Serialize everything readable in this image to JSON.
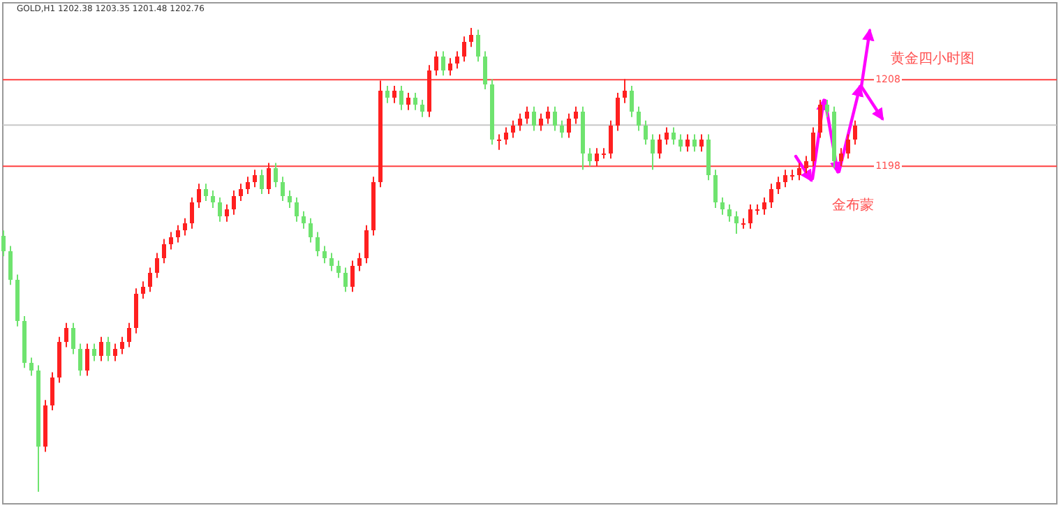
{
  "chart_data": {
    "type": "candlestick",
    "ylim": [
      1159.0,
      1216.9
    ],
    "yticks": [
      1198,
      1208
    ],
    "tick_labels": "y",
    "grid": false,
    "colors": [
      "#6fe36f",
      "#6fe36f",
      "#6fe36f",
      "#6fe36f",
      "#6fe36f",
      "#6fe36f",
      "#ff2020",
      "#ff2020",
      "#ff2020",
      "#ff2020",
      "#6fe36f",
      "#6fe36f",
      "#ff2020",
      "#6fe36f",
      "#ff2020",
      "#6fe36f",
      "#ff2020",
      "#ff2020",
      "#ff2020",
      "#ff2020",
      "#ff2020",
      "#ff2020",
      "#ff2020",
      "#ff2020",
      "#ff2020",
      "#ff2020",
      "#ff2020",
      "#ff2020",
      "#ff2020",
      "#6fe36f",
      "#6fe36f",
      "#6fe36f",
      "#ff2020",
      "#ff2020",
      "#ff2020",
      "#ff2020",
      "#ff2020",
      "#6fe36f",
      "#ff2020",
      "#6fe36f",
      "#6fe36f",
      "#6fe36f",
      "#6fe36f",
      "#6fe36f",
      "#6fe36f",
      "#6fe36f",
      "#6fe36f",
      "#6fe36f",
      "#6fe36f",
      "#6fe36f",
      "#ff2020",
      "#ff2020",
      "#ff2020",
      "#ff2020",
      "#ff2020",
      "#6fe36f",
      "#ff2020",
      "#6fe36f",
      "#ff2020",
      "#6fe36f",
      "#6fe36f",
      "#ff2020",
      "#ff2020",
      "#6fe36f",
      "#ff2020",
      "#ff2020",
      "#ff2020",
      "#ff2020",
      "#6fe36f",
      "#6fe36f",
      "#6fe36f",
      "#ff2020",
      "#ff2020",
      "#ff2020",
      "#ff2020",
      "#ff2020",
      "#6fe36f",
      "#ff2020",
      "#ff2020",
      "#6fe36f",
      "#6fe36f",
      "#ff2020",
      "#ff2020",
      "#6fe36f",
      "#6fe36f",
      "#ff2020",
      "#ff2020",
      "#ff2020",
      "#ff2020",
      "#ff2020",
      "#6fe36f",
      "#6fe36f",
      "#6fe36f",
      "#6fe36f",
      "#ff2020",
      "#ff2020",
      "#6fe36f",
      "#6fe36f",
      "#ff2020",
      "#6fe36f",
      "#ff2020",
      "#6fe36f",
      "#6fe36f",
      "#6fe36f",
      "#6fe36f",
      "#6fe36f",
      "#ff2020",
      "#ff2020",
      "#ff2020",
      "#ff2020",
      "#ff2020",
      "#ff2020",
      "#ff2020",
      "#ff2020",
      "#ff2020",
      "#ff2020",
      "#ff2020",
      "#ff2020",
      "#6fe36f",
      "#6fe36f",
      "#ff2020",
      "#ff2020",
      "#ff2020"
    ],
    "annotations": [
      "GOLD,H1 1202.38 1203.35 1201.48 1202.76",
      "黄金四小时图",
      "金布蒙"
    ],
    "ref_lines": [
      {
        "axis": "y",
        "value": 1208,
        "color": "#ff4040"
      },
      {
        "axis": "y",
        "value": 1198,
        "color": "#ff4040"
      },
      {
        "axis": "y",
        "value": 1202.76,
        "color": "#c8c8c8"
      }
    ],
    "categories": [
      null,
      null,
      null,
      null,
      null,
      null,
      null,
      null,
      null,
      null,
      null,
      null,
      null,
      null,
      null,
      null,
      null,
      null,
      null,
      null,
      null,
      null,
      null,
      null,
      null,
      null,
      null,
      null,
      null,
      null,
      null,
      null,
      null,
      null,
      null,
      null,
      null,
      null,
      null,
      null,
      null,
      null,
      null,
      null,
      null,
      null,
      null,
      null,
      null,
      null,
      null,
      null,
      null,
      null,
      null,
      null,
      null,
      null,
      null,
      null,
      null,
      null,
      null,
      null,
      null,
      null,
      null,
      null,
      null,
      null,
      null,
      null,
      null,
      null,
      null,
      null,
      null,
      null,
      null,
      null,
      null,
      null,
      null,
      null,
      null,
      null,
      null,
      null,
      null,
      null,
      null,
      null,
      null,
      null,
      null,
      null,
      null,
      null,
      null,
      null,
      null,
      null,
      null,
      null,
      null,
      null,
      null,
      null,
      null,
      null,
      null,
      null,
      null,
      null,
      null,
      null,
      null,
      null,
      null,
      null,
      null,
      null,
      null
    ],
    "ohlc": [
      [
        1190.0,
        1190.6,
        1187.6,
        1188.2
      ],
      [
        1188.2,
        1188.8,
        1184.3,
        1184.9
      ],
      [
        1184.9,
        1185.5,
        1179.5,
        1180.1
      ],
      [
        1180.1,
        1180.7,
        1174.7,
        1175.3
      ],
      [
        1175.3,
        1175.9,
        1173.8,
        1174.4
      ],
      [
        1174.4,
        1175.0,
        1160.4,
        1165.6
      ],
      [
        1165.6,
        1171.0,
        1165.0,
        1170.4
      ],
      [
        1170.4,
        1174.2,
        1169.8,
        1173.6
      ],
      [
        1173.6,
        1178.3,
        1173.0,
        1177.7
      ],
      [
        1177.7,
        1179.9,
        1177.1,
        1179.3
      ],
      [
        1179.3,
        1179.9,
        1176.3,
        1176.9
      ],
      [
        1176.9,
        1177.5,
        1173.8,
        1174.4
      ],
      [
        1174.4,
        1177.5,
        1173.8,
        1176.9
      ],
      [
        1176.9,
        1177.5,
        1175.5,
        1176.1
      ],
      [
        1176.1,
        1178.3,
        1175.5,
        1177.7
      ],
      [
        1177.7,
        1178.3,
        1175.5,
        1176.1
      ],
      [
        1176.1,
        1177.5,
        1175.5,
        1176.9
      ],
      [
        1176.9,
        1178.3,
        1176.3,
        1177.7
      ],
      [
        1177.7,
        1179.9,
        1177.1,
        1179.3
      ],
      [
        1179.3,
        1183.9,
        1178.7,
        1183.3
      ],
      [
        1183.3,
        1184.7,
        1182.7,
        1184.1
      ],
      [
        1184.1,
        1186.3,
        1183.5,
        1185.7
      ],
      [
        1185.7,
        1188.0,
        1185.1,
        1187.4
      ],
      [
        1187.4,
        1189.6,
        1186.8,
        1189.0
      ],
      [
        1189.0,
        1190.4,
        1188.4,
        1189.8
      ],
      [
        1189.8,
        1191.2,
        1189.2,
        1190.6
      ],
      [
        1190.6,
        1192.0,
        1190.0,
        1191.4
      ],
      [
        1191.4,
        1194.4,
        1190.8,
        1193.8
      ],
      [
        1193.8,
        1196.0,
        1193.2,
        1195.4
      ],
      [
        1195.4,
        1196.0,
        1194.0,
        1194.6
      ],
      [
        1194.6,
        1195.2,
        1193.2,
        1193.8
      ],
      [
        1193.8,
        1194.4,
        1191.6,
        1192.2
      ],
      [
        1192.2,
        1193.6,
        1191.6,
        1193.0
      ],
      [
        1193.0,
        1195.2,
        1192.4,
        1194.6
      ],
      [
        1194.6,
        1196.0,
        1194.0,
        1195.4
      ],
      [
        1195.4,
        1196.8,
        1194.8,
        1196.2
      ],
      [
        1196.2,
        1197.6,
        1195.6,
        1197.0
      ],
      [
        1197.0,
        1197.6,
        1194.8,
        1195.4
      ],
      [
        1195.4,
        1198.4,
        1194.8,
        1197.8
      ],
      [
        1197.8,
        1198.4,
        1195.6,
        1196.2
      ],
      [
        1196.2,
        1196.8,
        1194.0,
        1194.6
      ],
      [
        1194.6,
        1195.2,
        1193.2,
        1193.8
      ],
      [
        1193.8,
        1194.4,
        1191.6,
        1192.2
      ],
      [
        1192.2,
        1192.8,
        1190.8,
        1191.4
      ],
      [
        1191.4,
        1192.0,
        1189.2,
        1189.8
      ],
      [
        1189.8,
        1190.4,
        1187.6,
        1188.2
      ],
      [
        1188.2,
        1188.8,
        1186.8,
        1187.4
      ],
      [
        1187.4,
        1188.0,
        1185.9,
        1186.5
      ],
      [
        1186.5,
        1187.1,
        1185.1,
        1185.7
      ],
      [
        1185.7,
        1186.3,
        1183.5,
        1184.1
      ],
      [
        1184.1,
        1187.1,
        1183.5,
        1186.5
      ],
      [
        1186.5,
        1188.0,
        1185.9,
        1187.4
      ],
      [
        1187.4,
        1191.2,
        1186.8,
        1190.6
      ],
      [
        1190.6,
        1196.8,
        1190.0,
        1196.2
      ],
      [
        1196.2,
        1207.9,
        1195.6,
        1206.7
      ],
      [
        1206.7,
        1207.3,
        1205.3,
        1205.9
      ],
      [
        1205.9,
        1207.3,
        1205.3,
        1206.7
      ],
      [
        1206.7,
        1207.3,
        1204.5,
        1205.1
      ],
      [
        1205.1,
        1206.5,
        1204.5,
        1205.9
      ],
      [
        1205.9,
        1206.5,
        1204.5,
        1205.1
      ],
      [
        1205.1,
        1205.7,
        1203.7,
        1204.3
      ],
      [
        1204.3,
        1209.7,
        1203.7,
        1209.1
      ],
      [
        1209.1,
        1211.3,
        1208.5,
        1210.7
      ],
      [
        1210.7,
        1211.3,
        1208.5,
        1209.1
      ],
      [
        1209.1,
        1210.5,
        1208.5,
        1209.9
      ],
      [
        1209.9,
        1211.3,
        1209.3,
        1210.7
      ],
      [
        1210.7,
        1213.0,
        1210.1,
        1212.4
      ],
      [
        1212.4,
        1214.0,
        1211.8,
        1213.2
      ],
      [
        1213.2,
        1213.8,
        1210.1,
        1210.7
      ],
      [
        1210.7,
        1211.3,
        1206.9,
        1207.5
      ],
      [
        1207.5,
        1208.1,
        1200.5,
        1201.1
      ],
      [
        1201.1,
        1201.7,
        1199.9,
        1201.1
      ],
      [
        1201.1,
        1202.5,
        1200.5,
        1201.9
      ],
      [
        1201.9,
        1203.3,
        1201.3,
        1202.7
      ],
      [
        1202.7,
        1204.1,
        1202.1,
        1203.5
      ],
      [
        1203.5,
        1204.9,
        1202.9,
        1204.3
      ],
      [
        1204.3,
        1204.9,
        1202.1,
        1202.7
      ],
      [
        1202.7,
        1204.1,
        1202.1,
        1203.5
      ],
      [
        1203.5,
        1204.9,
        1202.9,
        1204.3
      ],
      [
        1204.3,
        1204.9,
        1202.1,
        1202.7
      ],
      [
        1202.7,
        1203.3,
        1201.3,
        1201.9
      ],
      [
        1201.9,
        1204.1,
        1201.3,
        1203.5
      ],
      [
        1203.5,
        1204.9,
        1202.9,
        1204.3
      ],
      [
        1204.3,
        1204.9,
        1197.6,
        1199.5
      ],
      [
        1199.5,
        1200.1,
        1198.0,
        1198.6
      ],
      [
        1198.6,
        1200.1,
        1198.0,
        1199.5
      ],
      [
        1199.5,
        1200.1,
        1198.9,
        1199.5
      ],
      [
        1199.5,
        1203.3,
        1198.9,
        1202.7
      ],
      [
        1202.7,
        1206.5,
        1202.1,
        1205.9
      ],
      [
        1205.9,
        1208.1,
        1205.3,
        1206.7
      ],
      [
        1206.7,
        1207.3,
        1203.7,
        1204.3
      ],
      [
        1204.3,
        1204.9,
        1202.1,
        1202.7
      ],
      [
        1202.7,
        1203.3,
        1200.5,
        1201.1
      ],
      [
        1201.1,
        1201.7,
        1197.6,
        1199.5
      ],
      [
        1199.5,
        1201.7,
        1198.9,
        1201.1
      ],
      [
        1201.1,
        1202.5,
        1200.5,
        1201.9
      ],
      [
        1201.9,
        1202.5,
        1200.5,
        1201.1
      ],
      [
        1201.1,
        1201.7,
        1199.7,
        1200.3
      ],
      [
        1200.3,
        1201.7,
        1199.7,
        1201.1
      ],
      [
        1201.1,
        1201.7,
        1199.7,
        1200.3
      ],
      [
        1200.3,
        1201.7,
        1199.7,
        1201.1
      ],
      [
        1201.1,
        1201.7,
        1196.4,
        1197.0
      ],
      [
        1197.0,
        1197.6,
        1193.2,
        1193.8
      ],
      [
        1193.8,
        1194.4,
        1192.4,
        1193.0
      ],
      [
        1193.0,
        1193.6,
        1191.6,
        1192.2
      ],
      [
        1192.2,
        1192.8,
        1190.2,
        1191.4
      ],
      [
        1191.4,
        1192.0,
        1190.8,
        1191.4
      ],
      [
        1191.4,
        1193.6,
        1190.8,
        1193.0
      ],
      [
        1193.0,
        1193.6,
        1192.4,
        1193.0
      ],
      [
        1193.0,
        1194.4,
        1192.4,
        1193.8
      ],
      [
        1193.8,
        1196.0,
        1193.2,
        1195.4
      ],
      [
        1195.4,
        1196.8,
        1194.8,
        1196.2
      ],
      [
        1196.2,
        1197.6,
        1195.6,
        1197.0
      ],
      [
        1197.0,
        1197.6,
        1196.4,
        1197.0
      ],
      [
        1197.0,
        1198.4,
        1196.4,
        1197.8
      ],
      [
        1197.8,
        1199.2,
        1197.2,
        1198.6
      ],
      [
        1198.6,
        1202.5,
        1198.0,
        1201.9
      ],
      [
        1201.9,
        1205.7,
        1201.3,
        1205.1
      ],
      [
        1205.1,
        1205.7,
        1203.7,
        1204.3
      ],
      [
        1204.3,
        1204.9,
        1197.8,
        1198.6
      ],
      [
        1198.6,
        1200.1,
        1198.0,
        1199.5
      ],
      [
        1199.5,
        1201.7,
        1198.9,
        1201.1
      ],
      [
        1201.1,
        1203.3,
        1200.5,
        1202.7
      ]
    ]
  }
}
